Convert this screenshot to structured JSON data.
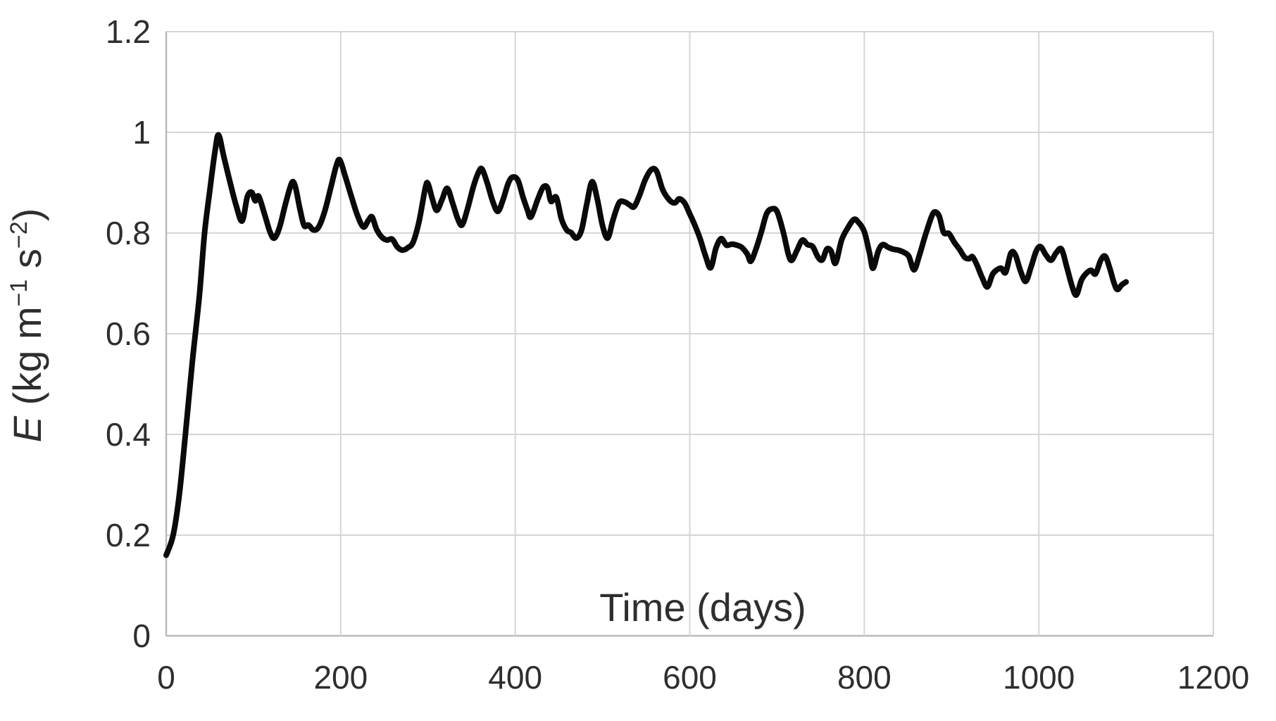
{
  "chart_data": {
    "type": "line",
    "title": "",
    "xlabel": "Time (days)",
    "ylabel": "E (kg m⁻¹ s⁻²)",
    "ylabel_parts": {
      "variable": "E",
      "pre": " (kg m",
      "sup1": "−1",
      "mid": " s",
      "sup2": "−2",
      "post": ")"
    },
    "xlim": [
      0,
      1200
    ],
    "ylim": [
      0,
      1.2
    ],
    "x_ticks": [
      0,
      200,
      400,
      600,
      800,
      1000,
      1200
    ],
    "y_ticks": [
      0,
      0.2,
      0.4,
      0.6,
      0.8,
      1,
      1.2
    ],
    "grid": true,
    "legend_position": "none",
    "series": [
      {
        "name": "E",
        "color": "#0a0a0a",
        "points": [
          [
            0,
            0.16
          ],
          [
            8,
            0.2
          ],
          [
            15,
            0.28
          ],
          [
            22,
            0.4
          ],
          [
            30,
            0.545
          ],
          [
            38,
            0.675
          ],
          [
            44,
            0.8
          ],
          [
            50,
            0.885
          ],
          [
            56,
            0.963
          ],
          [
            60,
            0.995
          ],
          [
            66,
            0.952
          ],
          [
            73,
            0.902
          ],
          [
            80,
            0.856
          ],
          [
            87,
            0.824
          ],
          [
            93,
            0.872
          ],
          [
            98,
            0.881
          ],
          [
            102,
            0.864
          ],
          [
            106,
            0.873
          ],
          [
            113,
            0.836
          ],
          [
            119,
            0.802
          ],
          [
            124,
            0.79
          ],
          [
            130,
            0.812
          ],
          [
            137,
            0.86
          ],
          [
            144,
            0.9
          ],
          [
            148,
            0.892
          ],
          [
            153,
            0.85
          ],
          [
            158,
            0.815
          ],
          [
            163,
            0.816
          ],
          [
            169,
            0.806
          ],
          [
            175,
            0.813
          ],
          [
            182,
            0.845
          ],
          [
            189,
            0.893
          ],
          [
            195,
            0.934
          ],
          [
            199,
            0.945
          ],
          [
            205,
            0.914
          ],
          [
            212,
            0.874
          ],
          [
            219,
            0.836
          ],
          [
            226,
            0.812
          ],
          [
            232,
            0.826
          ],
          [
            236,
            0.832
          ],
          [
            241,
            0.808
          ],
          [
            247,
            0.792
          ],
          [
            253,
            0.786
          ],
          [
            259,
            0.788
          ],
          [
            265,
            0.772
          ],
          [
            271,
            0.766
          ],
          [
            277,
            0.771
          ],
          [
            283,
            0.782
          ],
          [
            290,
            0.825
          ],
          [
            297,
            0.89
          ],
          [
            300,
            0.898
          ],
          [
            305,
            0.868
          ],
          [
            310,
            0.845
          ],
          [
            316,
            0.866
          ],
          [
            322,
            0.889
          ],
          [
            328,
            0.861
          ],
          [
            334,
            0.829
          ],
          [
            339,
            0.816
          ],
          [
            345,
            0.846
          ],
          [
            352,
            0.892
          ],
          [
            358,
            0.921
          ],
          [
            362,
            0.927
          ],
          [
            368,
            0.899
          ],
          [
            374,
            0.864
          ],
          [
            380,
            0.843
          ],
          [
            386,
            0.866
          ],
          [
            392,
            0.899
          ],
          [
            397,
            0.911
          ],
          [
            403,
            0.905
          ],
          [
            409,
            0.871
          ],
          [
            414,
            0.846
          ],
          [
            418,
            0.832
          ],
          [
            426,
            0.868
          ],
          [
            432,
            0.891
          ],
          [
            437,
            0.89
          ],
          [
            441,
            0.863
          ],
          [
            447,
            0.871
          ],
          [
            453,
            0.828
          ],
          [
            459,
            0.806
          ],
          [
            464,
            0.801
          ],
          [
            470,
            0.79
          ],
          [
            476,
            0.806
          ],
          [
            482,
            0.858
          ],
          [
            488,
            0.902
          ],
          [
            494,
            0.868
          ],
          [
            500,
            0.815
          ],
          [
            506,
            0.79
          ],
          [
            512,
            0.826
          ],
          [
            519,
            0.86
          ],
          [
            525,
            0.862
          ],
          [
            531,
            0.856
          ],
          [
            536,
            0.852
          ],
          [
            542,
            0.873
          ],
          [
            549,
            0.906
          ],
          [
            556,
            0.926
          ],
          [
            562,
            0.923
          ],
          [
            569,
            0.886
          ],
          [
            577,
            0.865
          ],
          [
            583,
            0.86
          ],
          [
            588,
            0.868
          ],
          [
            594,
            0.86
          ],
          [
            600,
            0.838
          ],
          [
            606,
            0.815
          ],
          [
            612,
            0.788
          ],
          [
            618,
            0.755
          ],
          [
            624,
            0.731
          ],
          [
            630,
            0.77
          ],
          [
            636,
            0.789
          ],
          [
            642,
            0.776
          ],
          [
            648,
            0.778
          ],
          [
            654,
            0.776
          ],
          [
            660,
            0.771
          ],
          [
            666,
            0.758
          ],
          [
            670,
            0.744
          ],
          [
            676,
            0.769
          ],
          [
            682,
            0.802
          ],
          [
            688,
            0.838
          ],
          [
            694,
            0.848
          ],
          [
            700,
            0.843
          ],
          [
            707,
            0.803
          ],
          [
            713,
            0.758
          ],
          [
            717,
            0.746
          ],
          [
            723,
            0.766
          ],
          [
            729,
            0.786
          ],
          [
            735,
            0.777
          ],
          [
            741,
            0.773
          ],
          [
            747,
            0.752
          ],
          [
            752,
            0.747
          ],
          [
            757,
            0.768
          ],
          [
            762,
            0.764
          ],
          [
            767,
            0.74
          ],
          [
            774,
            0.786
          ],
          [
            781,
            0.81
          ],
          [
            788,
            0.827
          ],
          [
            793,
            0.822
          ],
          [
            800,
            0.803
          ],
          [
            806,
            0.76
          ],
          [
            810,
            0.73
          ],
          [
            816,
            0.764
          ],
          [
            821,
            0.777
          ],
          [
            827,
            0.772
          ],
          [
            833,
            0.768
          ],
          [
            839,
            0.766
          ],
          [
            845,
            0.762
          ],
          [
            851,
            0.754
          ],
          [
            857,
            0.727
          ],
          [
            863,
            0.755
          ],
          [
            870,
            0.796
          ],
          [
            877,
            0.832
          ],
          [
            881,
            0.842
          ],
          [
            886,
            0.833
          ],
          [
            891,
            0.801
          ],
          [
            897,
            0.799
          ],
          [
            903,
            0.782
          ],
          [
            909,
            0.768
          ],
          [
            915,
            0.752
          ],
          [
            920,
            0.749
          ],
          [
            924,
            0.753
          ],
          [
            929,
            0.737
          ],
          [
            935,
            0.712
          ],
          [
            941,
            0.693
          ],
          [
            947,
            0.718
          ],
          [
            952,
            0.727
          ],
          [
            957,
            0.73
          ],
          [
            962,
            0.722
          ],
          [
            968,
            0.76
          ],
          [
            973,
            0.757
          ],
          [
            979,
            0.725
          ],
          [
            985,
            0.704
          ],
          [
            991,
            0.732
          ],
          [
            997,
            0.764
          ],
          [
            1002,
            0.773
          ],
          [
            1008,
            0.757
          ],
          [
            1014,
            0.746
          ],
          [
            1020,
            0.761
          ],
          [
            1026,
            0.768
          ],
          [
            1032,
            0.733
          ],
          [
            1038,
            0.695
          ],
          [
            1043,
            0.677
          ],
          [
            1049,
            0.707
          ],
          [
            1055,
            0.721
          ],
          [
            1060,
            0.726
          ],
          [
            1065,
            0.719
          ],
          [
            1071,
            0.746
          ],
          [
            1076,
            0.754
          ],
          [
            1081,
            0.732
          ],
          [
            1086,
            0.702
          ],
          [
            1090,
            0.688
          ],
          [
            1095,
            0.697
          ],
          [
            1100,
            0.703
          ]
        ]
      }
    ]
  },
  "colors": {
    "background": "#ffffff",
    "grid": "#d5d5d5",
    "axis": "#b9b9b9",
    "text": "#2e2e2e",
    "line": "#0a0a0a"
  }
}
